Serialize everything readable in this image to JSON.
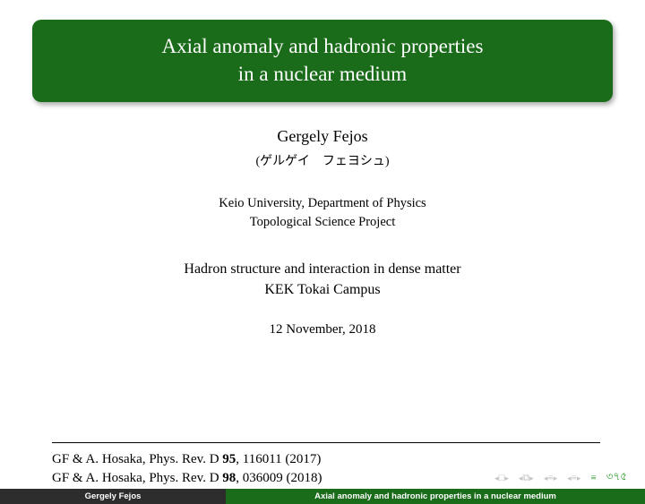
{
  "title": {
    "line1": "Axial anomaly and hadronic properties",
    "line2": "in a nuclear medium"
  },
  "author": {
    "name": "Gergely Fejos",
    "name_jp": "(ゲルゲイ　フェヨシュ)"
  },
  "affiliation": {
    "line1": "Keio University, Department of Physics",
    "line2": "Topological Science Project"
  },
  "venue": {
    "line1": "Hadron structure and interaction in dense matter",
    "line2": "KEK Tokai Campus"
  },
  "date": "12 November, 2018",
  "refs": {
    "r1_pre": "GF & A. Hosaka, Phys. Rev. D ",
    "r1_vol": "95",
    "r1_post": ", 116011 (2017)",
    "r2_pre": "GF & A. Hosaka, Phys. Rev. D ",
    "r2_vol": "98",
    "r2_post": ", 036009 (2018)"
  },
  "footer": {
    "left": "Gergely Fejos",
    "right": "Axial anomaly and hadronic properties in a nuclear medium"
  },
  "colors": {
    "primary": "#1a6b1a",
    "footer_dark": "#2d2d2d",
    "text": "#000000",
    "bg": "#ffffff"
  }
}
